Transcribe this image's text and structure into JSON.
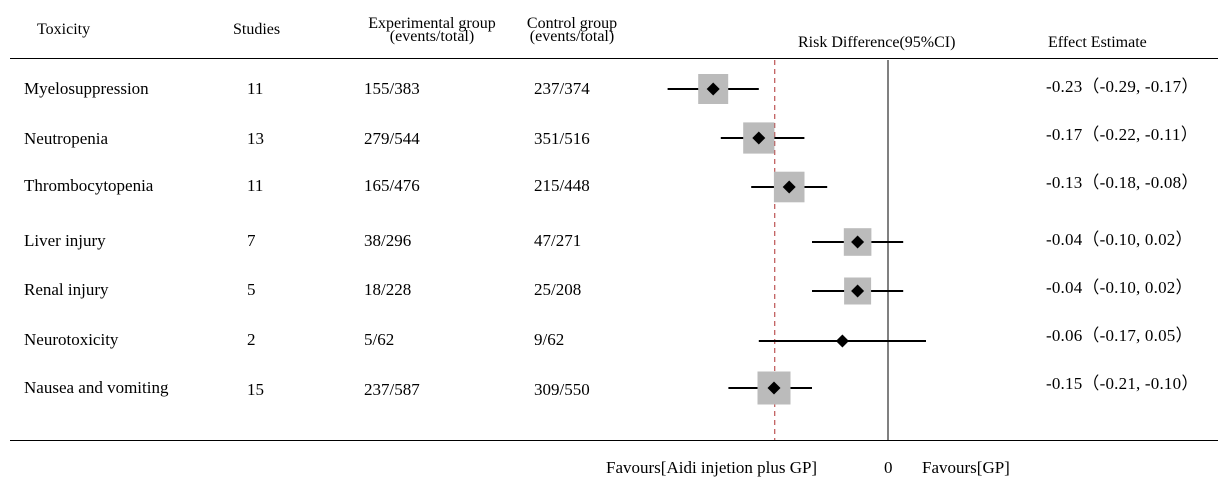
{
  "headers": {
    "toxicity": "Toxicity",
    "studies": "Studies",
    "exp_line1": "Experimental group",
    "exp_line2": "(events/total)",
    "ctrl_line1": "Control group",
    "ctrl_line2": "(events/total)",
    "risk": "Risk Difference(95%CI)",
    "effect": "Effect Estimate"
  },
  "footer": {
    "favours_left": "Favours[Aidi injetion plus GP]",
    "zero": "0",
    "favours_right": "Favours[GP]"
  },
  "rows": [
    {
      "name": "Myelosuppression",
      "studies": "11",
      "exp": "155/383",
      "ctrl": "237/374",
      "estimate": "-0.23（-0.29, -0.17）"
    },
    {
      "name": "Neutropenia",
      "studies": "13",
      "exp": "279/544",
      "ctrl": "351/516",
      "estimate": "-0.17（-0.22, -0.11）"
    },
    {
      "name": "Thrombocytopenia",
      "studies": "11",
      "exp": "165/476",
      "ctrl": "215/448",
      "estimate": "-0.13（-0.18, -0.08）"
    },
    {
      "name": "Liver injury",
      "studies": "7",
      "exp": "38/296",
      "ctrl": "47/271",
      "estimate": "-0.04（-0.10, 0.02）"
    },
    {
      "name": "Renal injury",
      "studies": "5",
      "exp": "18/228",
      "ctrl": "25/208",
      "estimate": "-0.04（-0.10, 0.02）"
    },
    {
      "name": "Neurotoxicity",
      "studies": "2",
      "exp": "5/62",
      "ctrl": "9/62",
      "estimate": "-0.06（-0.17, 0.05）"
    },
    {
      "name": "Nausea and vomiting",
      "studies": "15",
      "exp": "237/587",
      "ctrl": "309/550",
      "estimate": "-0.15（-0.21, -0.10）"
    }
  ],
  "chart_data": {
    "type": "forest",
    "measure": "Risk Difference(95%CI)",
    "categories": [
      "Myelosuppression",
      "Neutropenia",
      "Thrombocytopenia",
      "Liver injury",
      "Renal injury",
      "Neurotoxicity",
      "Nausea and vomiting"
    ],
    "estimates": [
      -0.23,
      -0.17,
      -0.13,
      -0.04,
      -0.04,
      -0.06,
      -0.15
    ],
    "ci_lower": [
      -0.29,
      -0.22,
      -0.18,
      -0.1,
      -0.1,
      -0.17,
      -0.21
    ],
    "ci_upper": [
      -0.17,
      -0.11,
      -0.08,
      0.02,
      0.02,
      0.05,
      -0.1
    ],
    "weight_box": [
      1.0,
      1.1,
      1.05,
      0.8,
      0.75,
      0.3,
      1.25
    ],
    "reference_line": 0,
    "pooled_dashed_line": -0.149,
    "colors": {
      "line": "#000000",
      "box": "#bbbbbb",
      "dashed": "#b03030"
    }
  }
}
